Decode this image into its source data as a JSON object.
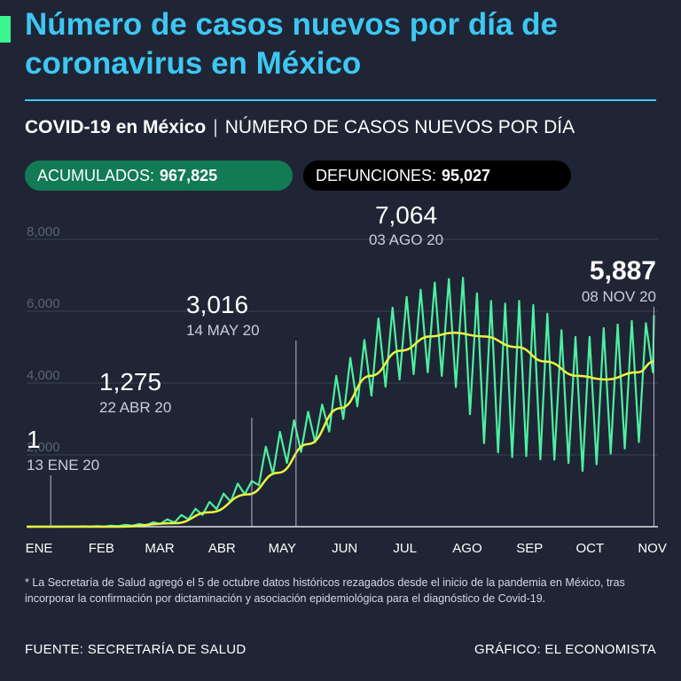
{
  "header": {
    "title": "Número de casos nuevos por día de coronavirus en México",
    "subtitle_bold": "COVID-19 en México",
    "subtitle_sep": "|",
    "subtitle_rest": "NÚMERO DE CASOS NUEVOS POR DÍA"
  },
  "stats": {
    "acumulados_label": "ACUMULADOS:",
    "acumulados_value": "967,825",
    "defunciones_label": "DEFUNCIONES:",
    "defunciones_value": "95,027"
  },
  "colors": {
    "background": "#1f2535",
    "title": "#3ec7f3",
    "accent": "#3df58f",
    "daily_line": "#4cf0a0",
    "trend_line": "#e9f542",
    "pill_green": "#127a55",
    "pill_black": "#000000"
  },
  "chart_data": {
    "type": "line",
    "x_tick_labels": [
      "ENE",
      "FEB",
      "MAR",
      "ABR",
      "MAY",
      "JUN",
      "JUL",
      "AGO",
      "SEP",
      "OCT",
      "NOV"
    ],
    "y_tick_labels": [
      "2,000",
      "4,000",
      "6,000",
      "8,000"
    ],
    "y_ticks": [
      2000,
      4000,
      6000,
      8000
    ],
    "ylim": [
      0,
      8000
    ],
    "x_range": [
      "2020-01-01",
      "2020-11-10"
    ],
    "grid": true,
    "daily_series": {
      "dates": [
        "2020-01-13",
        "2020-02-10",
        "2020-03-01",
        "2020-03-15",
        "2020-03-25",
        "2020-04-05",
        "2020-04-15",
        "2020-04-22",
        "2020-05-01",
        "2020-05-08",
        "2020-05-14",
        "2020-05-20",
        "2020-05-27",
        "2020-06-03",
        "2020-06-10",
        "2020-06-17",
        "2020-06-24",
        "2020-07-01",
        "2020-07-08",
        "2020-07-15",
        "2020-07-22",
        "2020-07-29",
        "2020-08-03",
        "2020-08-07",
        "2020-08-12",
        "2020-08-18",
        "2020-08-25",
        "2020-09-01",
        "2020-09-08",
        "2020-09-15",
        "2020-09-22",
        "2020-09-29",
        "2020-10-05",
        "2020-10-12",
        "2020-10-19",
        "2020-10-26",
        "2020-11-02",
        "2020-11-05",
        "2020-11-08"
      ],
      "highs": [
        1,
        20,
        90,
        250,
        500,
        800,
        1200,
        1275,
        2500,
        2700,
        3016,
        3200,
        3400,
        4200,
        4700,
        5200,
        5800,
        6100,
        6400,
        6600,
        6800,
        6900,
        7064,
        6800,
        6500,
        6300,
        6200,
        6300,
        6200,
        6000,
        5500,
        5300,
        5200,
        5500,
        5600,
        5700,
        5800,
        5600,
        5887
      ],
      "lows": [
        1,
        5,
        40,
        120,
        250,
        500,
        800,
        1000,
        1400,
        1700,
        2000,
        2200,
        2500,
        2800,
        3200,
        3500,
        3800,
        4000,
        4200,
        4300,
        4300,
        4100,
        3800,
        3400,
        2500,
        2200,
        2000,
        1900,
        2000,
        1800,
        1900,
        1700,
        1500,
        1800,
        2100,
        2200,
        2400,
        2800,
        4600
      ]
    },
    "trend_series": {
      "dates": [
        "2020-01-01",
        "2020-02-15",
        "2020-03-15",
        "2020-04-01",
        "2020-04-20",
        "2020-05-05",
        "2020-05-20",
        "2020-06-05",
        "2020-06-20",
        "2020-07-05",
        "2020-07-20",
        "2020-07-31",
        "2020-08-15",
        "2020-09-01",
        "2020-09-15",
        "2020-10-01",
        "2020-10-15",
        "2020-10-31",
        "2020-11-08"
      ],
      "values": [
        0,
        0,
        100,
        400,
        900,
        1500,
        2300,
        3300,
        4200,
        4900,
        5300,
        5400,
        5300,
        5000,
        4600,
        4200,
        4100,
        4300,
        4600
      ]
    },
    "annotations": [
      {
        "value_label": "1",
        "date_label": "13 ENE 20",
        "date": "2020-01-13",
        "value": 1
      },
      {
        "value_label": "1,275",
        "date_label": "22 ABR 20",
        "date": "2020-04-22",
        "value": 1275
      },
      {
        "value_label": "3,016",
        "date_label": "14 MAY 20",
        "date": "2020-05-14",
        "value": 3016
      },
      {
        "value_label": "7,064",
        "date_label": "03 AGO 20",
        "date": "2020-08-03",
        "value": 7064
      },
      {
        "value_label": "5,887",
        "date_label": "08 NOV 20",
        "date": "2020-11-08",
        "value": 5887
      }
    ]
  },
  "footnote": "* La Secretaría de Salud agregó el 5 de octubre datos históricos rezagados desde el inicio de la pandemia en México, tras incorporar la confirmación por dictaminación y asociación epidemiológica para el diagnóstico de Covid-19.",
  "footer": {
    "source": "FUENTE: SECRETARÍA DE SALUD",
    "credit": "GRÁFICO: EL ECONOMISTA"
  }
}
